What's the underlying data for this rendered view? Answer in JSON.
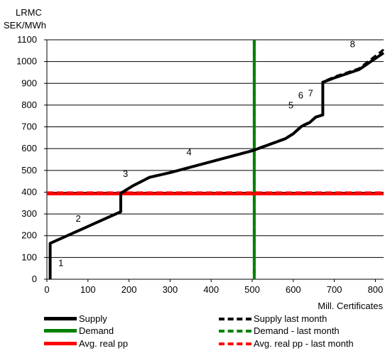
{
  "chart_data": {
    "type": "line",
    "y_unit_line1": "LRMC",
    "y_unit_line2": "SEK/MWh",
    "xlabel": "Mill. Certificates",
    "xlim": [
      0,
      820
    ],
    "ylim": [
      0,
      1100
    ],
    "x_ticks": [
      0,
      100,
      200,
      300,
      400,
      500,
      600,
      700,
      800
    ],
    "y_ticks": [
      0,
      100,
      200,
      300,
      400,
      500,
      600,
      700,
      800,
      900,
      1000,
      1100
    ],
    "grid": "horizontal",
    "legend_position": "bottom",
    "series": [
      {
        "name": "Supply",
        "color": "#000000",
        "style": "solid",
        "points": [
          [
            8,
            0
          ],
          [
            8,
            165
          ],
          [
            180,
            310
          ],
          [
            180,
            395
          ],
          [
            210,
            430
          ],
          [
            250,
            468
          ],
          [
            300,
            490
          ],
          [
            500,
            590
          ],
          [
            580,
            645
          ],
          [
            600,
            668
          ],
          [
            620,
            702
          ],
          [
            640,
            720
          ],
          [
            655,
            745
          ],
          [
            672,
            755
          ],
          [
            672,
            905
          ],
          [
            700,
            925
          ],
          [
            760,
            963
          ],
          [
            820,
            1040
          ]
        ]
      },
      {
        "name": "Supply last month",
        "color": "#000000",
        "style": "dashed",
        "points": [
          [
            8,
            0
          ],
          [
            8,
            165
          ],
          [
            180,
            310
          ],
          [
            180,
            395
          ],
          [
            210,
            430
          ],
          [
            250,
            470
          ],
          [
            300,
            490
          ],
          [
            500,
            592
          ],
          [
            580,
            647
          ],
          [
            600,
            670
          ],
          [
            620,
            705
          ],
          [
            640,
            722
          ],
          [
            655,
            747
          ],
          [
            672,
            757
          ],
          [
            672,
            907
          ],
          [
            700,
            930
          ],
          [
            760,
            968
          ],
          [
            820,
            1055
          ]
        ]
      },
      {
        "name": "Demand",
        "color": "#008000",
        "style": "solid",
        "vertical_at_x": 505
      },
      {
        "name": "Demand - last month",
        "color": "#008000",
        "style": "dashed",
        "vertical_at_x": 505
      },
      {
        "name": "Avg. real pp",
        "color": "#ff0000",
        "style": "solid",
        "horizontal_at_y": 392
      },
      {
        "name": "Avg. real pp - last month",
        "color": "#ff0000",
        "style": "dashed",
        "horizontal_at_y": 397
      }
    ],
    "annotations": [
      {
        "text": "1",
        "x": 28,
        "y": 60
      },
      {
        "text": "2",
        "x": 70,
        "y": 265
      },
      {
        "text": "3",
        "x": 185,
        "y": 470
      },
      {
        "text": "4",
        "x": 340,
        "y": 570
      },
      {
        "text": "5",
        "x": 588,
        "y": 785
      },
      {
        "text": "6",
        "x": 612,
        "y": 830
      },
      {
        "text": "7",
        "x": 636,
        "y": 840
      },
      {
        "text": "8",
        "x": 738,
        "y": 1065
      }
    ]
  }
}
